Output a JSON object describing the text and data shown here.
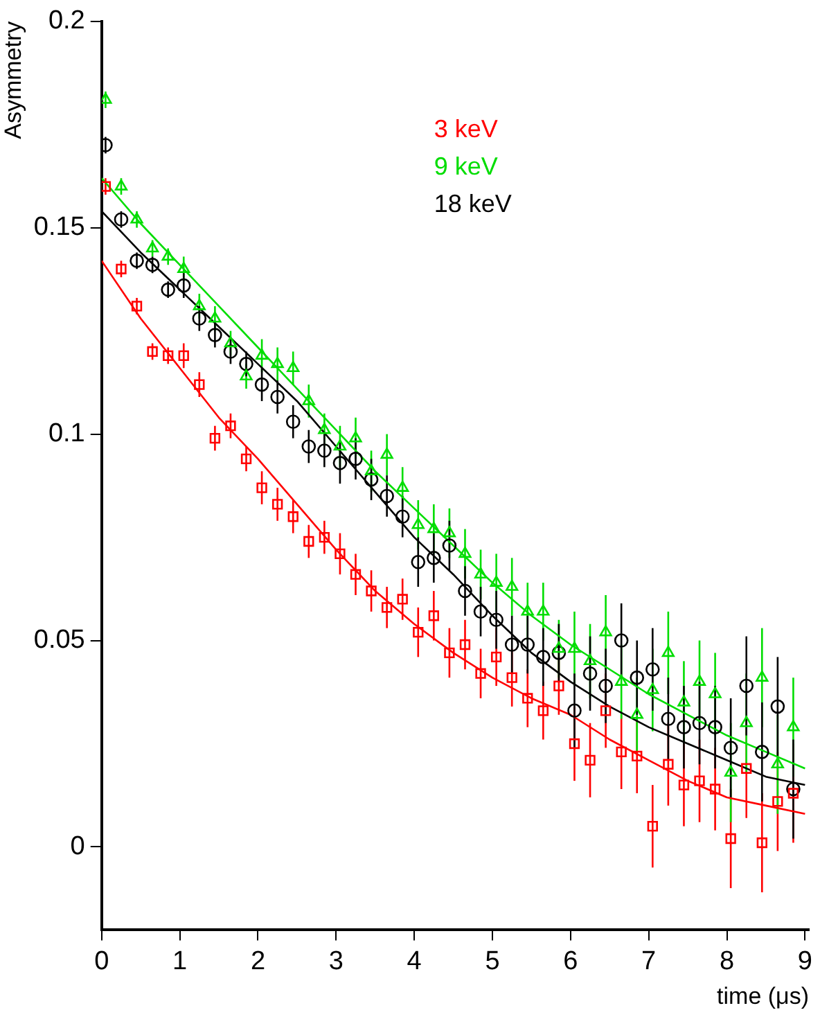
{
  "chart_data": {
    "type": "scatter",
    "xlabel": "time (μs)",
    "ylabel": "Asymmetry",
    "xlim": [
      0,
      9.05
    ],
    "ylim": [
      -0.02,
      0.2
    ],
    "xticks": [
      0,
      1,
      2,
      3,
      4,
      5,
      6,
      7,
      8,
      9
    ],
    "yticks": [
      0,
      0.05,
      0.1,
      0.15,
      0.2
    ],
    "grid": false,
    "legend": "top",
    "x": [
      0.05,
      0.25,
      0.45,
      0.65,
      0.85,
      1.05,
      1.25,
      1.45,
      1.65,
      1.85,
      2.05,
      2.25,
      2.45,
      2.65,
      2.85,
      3.05,
      3.25,
      3.45,
      3.65,
      3.85,
      4.05,
      4.25,
      4.45,
      4.65,
      4.85,
      5.05,
      5.25,
      5.45,
      5.65,
      5.85,
      6.05,
      6.25,
      6.45,
      6.65,
      6.85,
      7.05,
      7.25,
      7.45,
      7.65,
      7.85,
      8.05,
      8.25,
      8.45,
      8.65,
      8.85
    ],
    "series": [
      {
        "name": "3 keV",
        "color": "#ff0000",
        "marker": "square",
        "values": [
          0.16,
          0.14,
          0.131,
          0.12,
          0.119,
          0.119,
          0.112,
          0.099,
          0.102,
          0.094,
          0.087,
          0.083,
          0.08,
          0.074,
          0.075,
          0.071,
          0.066,
          0.062,
          0.058,
          0.06,
          0.052,
          0.056,
          0.047,
          0.049,
          0.042,
          0.046,
          0.041,
          0.036,
          0.033,
          0.039,
          0.025,
          0.021,
          0.033,
          0.023,
          0.022,
          0.005,
          0.02,
          0.015,
          0.016,
          0.014,
          0.002,
          0.019,
          0.001,
          0.011,
          0.013
        ],
        "errors": [
          0.002,
          0.002,
          0.002,
          0.002,
          0.002,
          0.003,
          0.003,
          0.003,
          0.003,
          0.003,
          0.004,
          0.004,
          0.004,
          0.004,
          0.004,
          0.005,
          0.005,
          0.005,
          0.005,
          0.005,
          0.006,
          0.006,
          0.006,
          0.006,
          0.006,
          0.007,
          0.007,
          0.007,
          0.007,
          0.007,
          0.009,
          0.009,
          0.009,
          0.009,
          0.009,
          0.01,
          0.01,
          0.01,
          0.01,
          0.01,
          0.012,
          0.012,
          0.012,
          0.012,
          0.012
        ]
      },
      {
        "name": "9 keV",
        "color": "#00dd00",
        "marker": "triangle",
        "values": [
          0.181,
          0.16,
          0.152,
          0.145,
          0.143,
          0.14,
          0.131,
          0.128,
          0.122,
          0.114,
          0.119,
          0.117,
          0.116,
          0.108,
          0.101,
          0.097,
          0.099,
          0.091,
          0.095,
          0.087,
          0.078,
          0.077,
          0.076,
          0.071,
          0.066,
          0.064,
          0.063,
          0.057,
          0.057,
          0.048,
          0.048,
          0.045,
          0.052,
          0.04,
          0.032,
          0.038,
          0.047,
          0.035,
          0.04,
          0.037,
          0.018,
          0.03,
          0.041,
          0.02,
          0.029
        ],
        "errors": [
          0.002,
          0.002,
          0.002,
          0.002,
          0.002,
          0.003,
          0.003,
          0.003,
          0.003,
          0.003,
          0.004,
          0.004,
          0.004,
          0.004,
          0.004,
          0.005,
          0.005,
          0.005,
          0.005,
          0.005,
          0.006,
          0.006,
          0.006,
          0.006,
          0.006,
          0.007,
          0.007,
          0.007,
          0.007,
          0.007,
          0.009,
          0.009,
          0.009,
          0.009,
          0.009,
          0.01,
          0.01,
          0.01,
          0.01,
          0.01,
          0.012,
          0.012,
          0.012,
          0.012,
          0.012
        ]
      },
      {
        "name": "18 keV",
        "color": "#000000",
        "marker": "circle",
        "values": [
          0.17,
          0.152,
          0.142,
          0.141,
          0.135,
          0.136,
          0.128,
          0.124,
          0.12,
          0.117,
          0.112,
          0.109,
          0.103,
          0.097,
          0.096,
          0.093,
          0.094,
          0.089,
          0.085,
          0.08,
          0.069,
          0.07,
          0.073,
          0.062,
          0.057,
          0.055,
          0.049,
          0.049,
          0.046,
          0.047,
          0.033,
          0.042,
          0.039,
          0.05,
          0.041,
          0.043,
          0.031,
          0.029,
          0.03,
          0.029,
          0.024,
          0.039,
          0.023,
          0.034,
          0.014
        ],
        "errors": [
          0.002,
          0.002,
          0.002,
          0.002,
          0.002,
          0.003,
          0.003,
          0.003,
          0.003,
          0.003,
          0.004,
          0.004,
          0.004,
          0.004,
          0.004,
          0.005,
          0.005,
          0.005,
          0.005,
          0.005,
          0.006,
          0.006,
          0.006,
          0.006,
          0.006,
          0.007,
          0.007,
          0.007,
          0.007,
          0.007,
          0.009,
          0.009,
          0.009,
          0.009,
          0.009,
          0.01,
          0.01,
          0.01,
          0.01,
          0.01,
          0.012,
          0.012,
          0.012,
          0.012,
          0.012
        ]
      },
      {
        "type": "line",
        "color": "#ff0000",
        "marker": "none",
        "x": [
          0,
          0.5,
          1,
          1.5,
          2,
          2.5,
          3,
          3.5,
          4,
          4.5,
          5,
          5.5,
          6,
          6.5,
          7,
          7.5,
          8,
          8.5,
          9
        ],
        "values": [
          0.142,
          0.128,
          0.116,
          0.104,
          0.094,
          0.083,
          0.072,
          0.062,
          0.054,
          0.047,
          0.041,
          0.036,
          0.032,
          0.026,
          0.021,
          0.016,
          0.012,
          0.01,
          0.008
        ]
      },
      {
        "type": "line",
        "color": "#00dd00",
        "marker": "none",
        "x": [
          0,
          0.5,
          1,
          1.5,
          2,
          2.5,
          3,
          3.5,
          4,
          4.5,
          5,
          5.5,
          6,
          6.5,
          7,
          7.5,
          8,
          8.5,
          9
        ],
        "values": [
          0.162,
          0.151,
          0.141,
          0.131,
          0.121,
          0.111,
          0.101,
          0.091,
          0.082,
          0.073,
          0.064,
          0.056,
          0.049,
          0.043,
          0.037,
          0.032,
          0.027,
          0.023,
          0.019
        ]
      },
      {
        "type": "line",
        "color": "#000000",
        "marker": "none",
        "x": [
          0,
          0.5,
          1,
          1.5,
          2,
          2.5,
          3,
          3.5,
          4,
          4.5,
          5,
          5.5,
          6,
          6.5,
          7,
          7.5,
          8,
          8.5,
          9
        ],
        "values": [
          0.154,
          0.144,
          0.135,
          0.126,
          0.117,
          0.108,
          0.097,
          0.086,
          0.075,
          0.066,
          0.056,
          0.047,
          0.04,
          0.034,
          0.029,
          0.025,
          0.021,
          0.017,
          0.015
        ]
      }
    ]
  }
}
